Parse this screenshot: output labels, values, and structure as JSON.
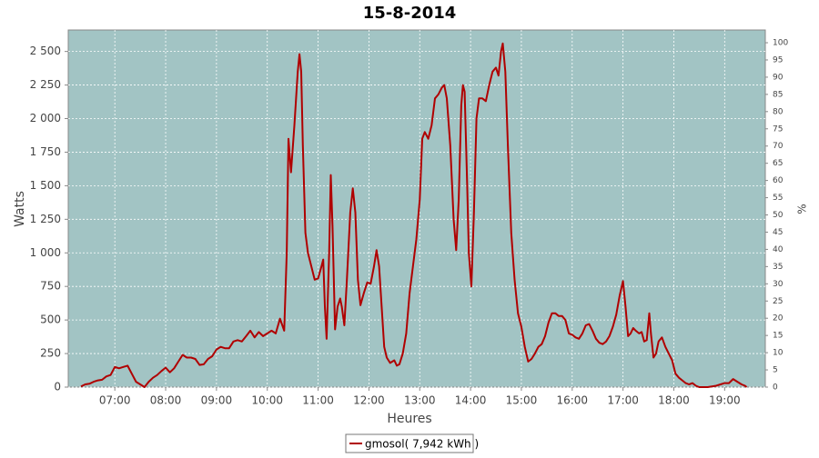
{
  "chart_data": {
    "type": "line",
    "title": "15-8-2014",
    "x_label": "Heures",
    "y_label": "Watts",
    "y2_label": "%",
    "x": [
      "06:20",
      "06:25",
      "06:30",
      "06:35",
      "06:40",
      "06:45",
      "06:50",
      "06:55",
      "07:00",
      "07:05",
      "07:10",
      "07:15",
      "07:20",
      "07:25",
      "07:30",
      "07:35",
      "07:40",
      "07:45",
      "07:50",
      "07:55",
      "08:00",
      "08:05",
      "08:10",
      "08:15",
      "08:20",
      "08:25",
      "08:30",
      "08:35",
      "08:40",
      "08:45",
      "08:50",
      "08:55",
      "09:00",
      "09:05",
      "09:10",
      "09:15",
      "09:20",
      "09:25",
      "09:30",
      "09:35",
      "09:40",
      "09:45",
      "09:50",
      "09:55",
      "10:00",
      "10:05",
      "10:10",
      "10:15",
      "10:20",
      "10:23",
      "10:25",
      "10:28",
      "10:32",
      "10:36",
      "10:38",
      "10:40",
      "10:42",
      "10:45",
      "10:48",
      "10:52",
      "10:56",
      "11:00",
      "11:04",
      "11:06",
      "11:08",
      "11:10",
      "11:13",
      "11:15",
      "11:17",
      "11:20",
      "11:23",
      "11:26",
      "11:28",
      "11:31",
      "11:34",
      "11:38",
      "11:41",
      "11:44",
      "11:47",
      "11:50",
      "11:54",
      "11:58",
      "12:02",
      "12:06",
      "12:09",
      "12:12",
      "12:15",
      "12:18",
      "12:21",
      "12:25",
      "12:30",
      "12:33",
      "12:36",
      "12:40",
      "12:44",
      "12:48",
      "12:52",
      "12:56",
      "13:00",
      "13:03",
      "13:06",
      "13:10",
      "13:14",
      "13:18",
      "13:22",
      "13:26",
      "13:29",
      "13:32",
      "13:36",
      "13:40",
      "13:43",
      "13:46",
      "13:49",
      "13:51",
      "13:53",
      "13:56",
      "13:58",
      "14:01",
      "14:04",
      "14:07",
      "14:10",
      "14:14",
      "14:18",
      "14:22",
      "14:26",
      "14:30",
      "14:33",
      "14:36",
      "14:38",
      "14:41",
      "14:44",
      "14:48",
      "14:52",
      "14:56",
      "15:00",
      "15:04",
      "15:08",
      "15:12",
      "15:16",
      "15:20",
      "15:24",
      "15:28",
      "15:32",
      "15:36",
      "15:40",
      "15:44",
      "15:48",
      "15:52",
      "15:56",
      "16:00",
      "16:04",
      "16:08",
      "16:12",
      "16:16",
      "16:20",
      "16:24",
      "16:28",
      "16:32",
      "16:36",
      "16:40",
      "16:44",
      "16:48",
      "16:52",
      "16:56",
      "17:00",
      "17:03",
      "17:06",
      "17:09",
      "17:12",
      "17:15",
      "17:19",
      "17:22",
      "17:25",
      "17:28",
      "17:31",
      "17:33",
      "17:36",
      "17:39",
      "17:42",
      "17:46",
      "17:50",
      "17:54",
      "17:58",
      "18:02",
      "18:06",
      "18:10",
      "18:14",
      "18:18",
      "18:22",
      "18:26",
      "18:30",
      "18:40",
      "18:50",
      "18:55",
      "19:00",
      "19:05",
      "19:10",
      "19:15",
      "19:20",
      "19:24",
      "19:26"
    ],
    "series": [
      {
        "name": "gmosol( 7,942 kWh )",
        "color": "#b00000",
        "values": [
          5,
          20,
          25,
          40,
          50,
          55,
          80,
          90,
          150,
          140,
          150,
          160,
          100,
          40,
          20,
          0,
          40,
          70,
          90,
          120,
          145,
          110,
          140,
          190,
          240,
          220,
          220,
          210,
          165,
          170,
          210,
          230,
          280,
          300,
          290,
          290,
          340,
          350,
          340,
          380,
          420,
          370,
          410,
          380,
          400,
          420,
          400,
          510,
          420,
          1000,
          1850,
          1600,
          1950,
          2350,
          2480,
          2350,
          1800,
          1150,
          1000,
          900,
          800,
          810,
          900,
          950,
          600,
          360,
          1000,
          1580,
          1200,
          430,
          600,
          660,
          600,
          460,
          800,
          1300,
          1480,
          1300,
          800,
          610,
          700,
          780,
          770,
          900,
          1020,
          900,
          600,
          300,
          220,
          180,
          200,
          160,
          170,
          250,
          400,
          700,
          900,
          1100,
          1400,
          1850,
          1900,
          1850,
          1950,
          2150,
          2180,
          2230,
          2250,
          2150,
          1800,
          1250,
          1020,
          1400,
          2100,
          2250,
          2200,
          1500,
          1000,
          750,
          1300,
          2000,
          2150,
          2150,
          2130,
          2250,
          2350,
          2380,
          2320,
          2500,
          2560,
          2350,
          1800,
          1150,
          800,
          550,
          450,
          300,
          190,
          210,
          250,
          300,
          320,
          380,
          480,
          550,
          550,
          530,
          530,
          500,
          400,
          390,
          370,
          360,
          400,
          460,
          470,
          420,
          360,
          330,
          320,
          340,
          380,
          450,
          540,
          680,
          790,
          600,
          380,
          400,
          440,
          420,
          400,
          410,
          340,
          350,
          550,
          400,
          220,
          250,
          340,
          370,
          300,
          250,
          200,
          100,
          70,
          50,
          30,
          20,
          30,
          10,
          0,
          0,
          10,
          20,
          30,
          30,
          60,
          40,
          20,
          10,
          0
        ]
      }
    ],
    "xlim": [
      "06:05",
      "19:48"
    ],
    "xticks": [
      "07:00",
      "08:00",
      "09:00",
      "10:00",
      "11:00",
      "12:00",
      "13:00",
      "14:00",
      "15:00",
      "16:00",
      "17:00",
      "18:00",
      "19:00"
    ],
    "ylim": [
      0,
      2660
    ],
    "yticks": [
      0,
      250,
      500,
      750,
      {
        "value": 1000,
        "label": "1 000"
      },
      {
        "value": 1250,
        "label": "1 250"
      },
      {
        "value": 1500,
        "label": "1 500"
      },
      {
        "value": 1750,
        "label": "1 750"
      },
      {
        "value": 2000,
        "label": "2 000"
      },
      {
        "value": 2250,
        "label": "2 250"
      },
      {
        "value": 2500,
        "label": "2 500"
      }
    ],
    "y2lim": [
      0,
      103.7
    ],
    "y2ticks": [
      0,
      5,
      10,
      15,
      20,
      25,
      30,
      35,
      40,
      45,
      50,
      55,
      60,
      65,
      70,
      75,
      80,
      85,
      90,
      95,
      100
    ],
    "grid": true,
    "legend": "bottom",
    "background": "#a2c4c4"
  }
}
